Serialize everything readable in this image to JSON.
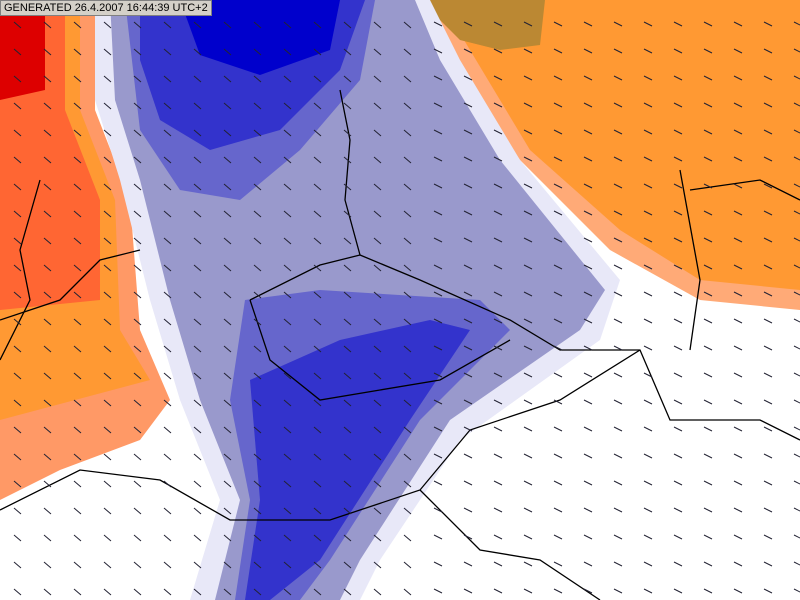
{
  "label": "GENERATED 26.4.2007 16:44:39 UTC+2"
}
